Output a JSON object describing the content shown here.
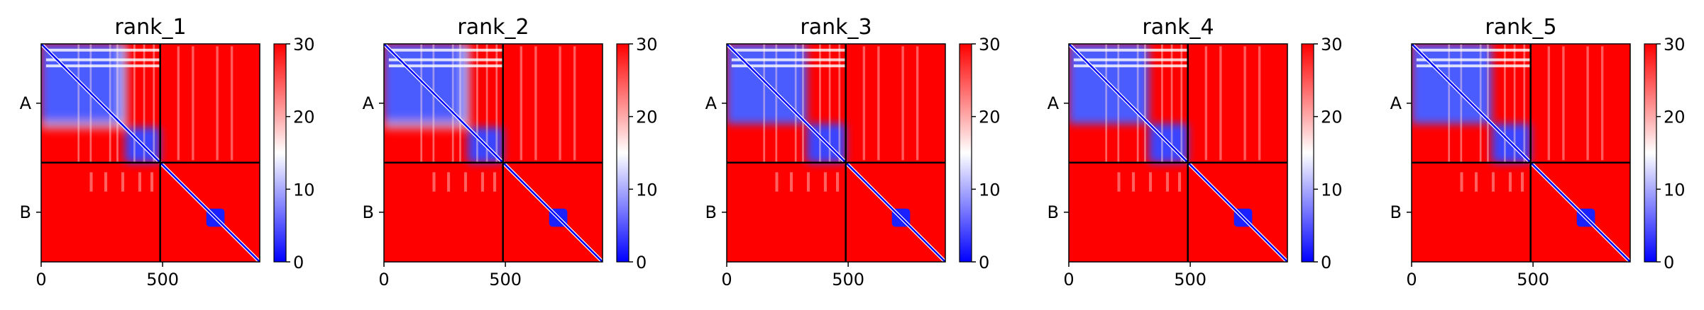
{
  "chart_data": {
    "type": "heatmap",
    "colormap": {
      "low": "#0000ff",
      "mid": "#ffffff",
      "high": "#ff0000"
    },
    "colorbar": {
      "min": 0,
      "max": 30,
      "ticks": [
        0,
        10,
        20,
        30
      ]
    },
    "xlim": [
      0,
      900
    ],
    "xticks": [
      0,
      500
    ],
    "chain_break": 490,
    "row_labels": [
      "A",
      "B"
    ],
    "grid": false,
    "panels": [
      {
        "title": "rank_1",
        "a_split": 345,
        "b_core": [
          680,
          755
        ]
      },
      {
        "title": "rank_2",
        "a_split": 345,
        "b_core": [
          680,
          755
        ]
      },
      {
        "title": "rank_3",
        "a_split": 330,
        "b_core": [
          680,
          755
        ]
      },
      {
        "title": "rank_4",
        "a_split": 330,
        "b_core": [
          680,
          755
        ]
      },
      {
        "title": "rank_5",
        "a_split": 330,
        "b_core": [
          680,
          755
        ]
      }
    ]
  }
}
